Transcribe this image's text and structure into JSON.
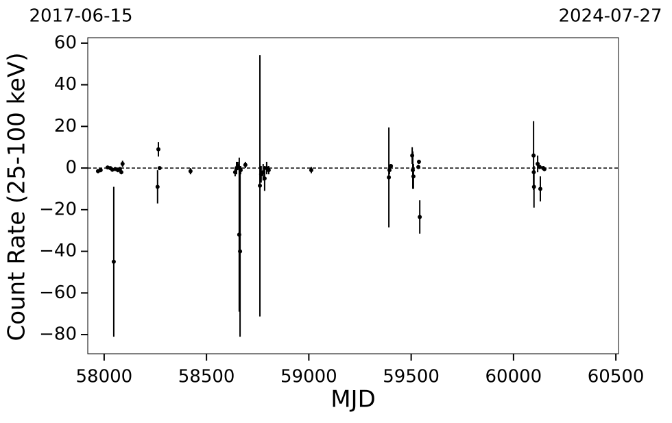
{
  "chart_data": {
    "type": "errorbar",
    "top_left_label": "2017-06-15",
    "top_right_label": "2024-07-27",
    "xlabel": "MJD",
    "ylabel": "Count Rate (25-100 keV)",
    "color": "#000000",
    "hline": 0,
    "xlim": [
      57920,
      60513
    ],
    "xticks": [
      58000,
      58500,
      59000,
      59500,
      60000,
      60500
    ],
    "ylim": [
      -89.2,
      62.6
    ],
    "yticks": [
      {
        "value": -80,
        "label": "−80"
      },
      {
        "value": -60,
        "label": "−60"
      },
      {
        "value": -40,
        "label": "−40"
      },
      {
        "value": -20,
        "label": "−20"
      },
      0,
      20,
      40,
      60
    ],
    "x": [
      57970,
      57983,
      58017,
      58030,
      58040,
      58047,
      58054,
      58067,
      58077,
      58084,
      58090,
      58261,
      58265,
      58271,
      58422,
      58640,
      58647,
      58653,
      58660,
      58664,
      58667,
      58690,
      58761,
      58767,
      58777,
      58784,
      58794,
      58804,
      59012,
      59391,
      59394,
      59401,
      59505,
      59508,
      59511,
      59535,
      59538,
      59542,
      60098,
      60099,
      60100,
      60118,
      60128,
      60131,
      60145,
      60151
    ],
    "values": [
      -1.5,
      -1,
      0.3,
      0,
      -0.8,
      -45,
      -0.5,
      -1,
      -0.5,
      -2,
      2,
      -9,
      9,
      0,
      -1.5,
      -2,
      0,
      1,
      -32,
      -40,
      -1,
      1.5,
      -8.5,
      -3,
      -2,
      -5,
      0,
      -1,
      -1,
      -4.5,
      -1,
      1,
      6,
      -1,
      -4,
      0.5,
      3,
      -23.5,
      6,
      -2,
      -9,
      2,
      0.5,
      -10,
      0,
      -0.5
    ],
    "errors": [
      1,
      1,
      0.5,
      0.5,
      1,
      36,
      0.5,
      1,
      1,
      1,
      1.5,
      8,
      3.5,
      0.5,
      1.5,
      2,
      3,
      2,
      37,
      41,
      2,
      1.5,
      62.8,
      4,
      4,
      6,
      3,
      2,
      1.5,
      24,
      2,
      1,
      4,
      9,
      6,
      1,
      1,
      8,
      16.5,
      3,
      10,
      4,
      1,
      6,
      1,
      1
    ]
  }
}
